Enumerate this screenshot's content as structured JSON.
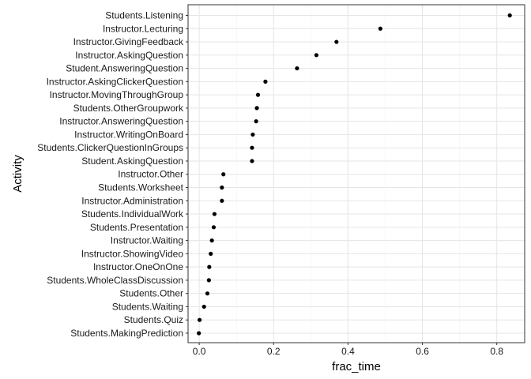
{
  "chart_data": {
    "type": "scatter",
    "xlabel": "frac_time",
    "ylabel": "Activity",
    "xlim": [
      -0.03,
      0.875
    ],
    "x_ticks": [
      0.0,
      0.2,
      0.4,
      0.6,
      0.8
    ],
    "x_tick_labels": [
      "0.0",
      "0.2",
      "0.4",
      "0.6",
      "0.8"
    ],
    "grid": true,
    "point_color": "#000000",
    "grid_major_color": "#e5e5e5",
    "grid_minor_color": "#f3f3f3",
    "panel_border_color": "#333333",
    "categories": [
      "Students.Listening",
      "Instructor.Lecturing",
      "Instructor.GivingFeedback",
      "Instructor.AskingQuestion",
      "Student.AnsweringQuestion",
      "Instructor.AskingClickerQuestion",
      "Instructor.MovingThroughGroup",
      "Students.OtherGroupwork",
      "Instructor.AnsweringQuestion",
      "Instructor.WritingOnBoard",
      "Students.ClickerQuestionInGroups",
      "Student.AskingQuestion",
      "Instructor.Other",
      "Students.Worksheet",
      "Instructor.Administration",
      "Students.IndividualWork",
      "Students.Presentation",
      "Instructor.Waiting",
      "Instructor.ShowingVideo",
      "Instructor.OneOnOne",
      "Students.WholeClassDiscussion",
      "Students.Other",
      "Students.Waiting",
      "Students.Quiz",
      "Students.MakingPrediction"
    ],
    "values": [
      0.835,
      0.487,
      0.369,
      0.315,
      0.263,
      0.178,
      0.158,
      0.155,
      0.153,
      0.144,
      0.142,
      0.142,
      0.065,
      0.061,
      0.061,
      0.041,
      0.039,
      0.034,
      0.031,
      0.027,
      0.026,
      0.022,
      0.013,
      0.001,
      -0.001
    ]
  }
}
